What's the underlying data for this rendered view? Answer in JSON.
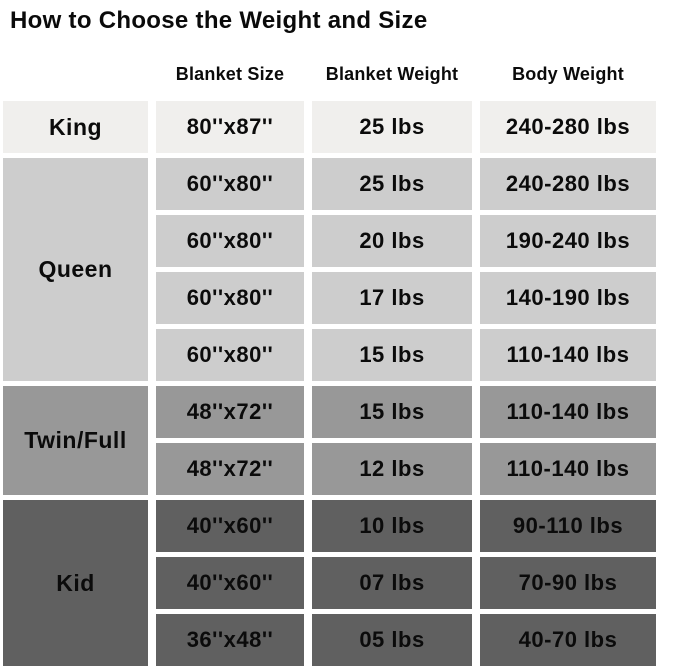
{
  "title": "How to Choose the Weight and Size",
  "header": {
    "col_blanket_size": "Blanket Size",
    "col_blanket_weight": "Blanket Weight",
    "col_body_weight": "Body Weight"
  },
  "colors": {
    "page_bg": "#ffffff",
    "text": "#0a0a0a",
    "king_row_bg": "#f0efed",
    "queen_rows_bg": "#cdcdcd",
    "twin_full_rows_bg": "#989898",
    "kid_rows_bg": "#606060"
  },
  "chart_data": {
    "type": "table",
    "title": "How to Choose the Weight and Size",
    "columns": [
      "Blanket Size",
      "Blanket Weight",
      "Body Weight"
    ],
    "sections": [
      {
        "label": "King",
        "color": "#f0efed",
        "rows": [
          {
            "size": "80''x87''",
            "weight": "25 lbs",
            "body": "240-280 lbs"
          }
        ]
      },
      {
        "label": "Queen",
        "color": "#cdcdcd",
        "rows": [
          {
            "size": "60''x80''",
            "weight": "25 lbs",
            "body": "240-280 lbs"
          },
          {
            "size": "60''x80''",
            "weight": "20 lbs",
            "body": "190-240 lbs"
          },
          {
            "size": "60''x80''",
            "weight": "17 lbs",
            "body": "140-190 lbs"
          },
          {
            "size": "60''x80''",
            "weight": "15 lbs",
            "body": "110-140 lbs"
          }
        ]
      },
      {
        "label": "Twin/Full",
        "color": "#989898",
        "rows": [
          {
            "size": "48''x72''",
            "weight": "15 lbs",
            "body": "110-140 lbs"
          },
          {
            "size": "48''x72''",
            "weight": "12 lbs",
            "body": "110-140 lbs"
          }
        ]
      },
      {
        "label": "Kid",
        "color": "#606060",
        "rows": [
          {
            "size": "40''x60''",
            "weight": "10 lbs",
            "body": "90-110 lbs"
          },
          {
            "size": "40''x60''",
            "weight": "07 lbs",
            "body": "70-90 lbs"
          },
          {
            "size": "36''x48''",
            "weight": "05 lbs",
            "body": "40-70 lbs"
          }
        ]
      }
    ]
  }
}
